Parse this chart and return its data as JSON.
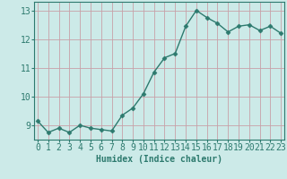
{
  "x": [
    0,
    1,
    2,
    3,
    4,
    5,
    6,
    7,
    8,
    9,
    10,
    11,
    12,
    13,
    14,
    15,
    16,
    17,
    18,
    19,
    20,
    21,
    22,
    23
  ],
  "y": [
    9.15,
    8.75,
    8.9,
    8.75,
    9.0,
    8.9,
    8.85,
    8.8,
    9.35,
    9.6,
    10.1,
    10.85,
    11.35,
    11.5,
    12.45,
    13.0,
    12.75,
    12.55,
    12.25,
    12.45,
    12.5,
    12.3,
    12.45,
    12.2
  ],
  "line_color": "#2d7a6e",
  "marker": "D",
  "marker_size": 2.5,
  "line_width": 1.0,
  "bg_color": "#cceae8",
  "grid_color": "#c8a0a8",
  "xlabel": "Humidex (Indice chaleur)",
  "xlabel_fontsize": 7,
  "tick_fontsize": 7,
  "ylim": [
    8.5,
    13.3
  ],
  "yticks": [
    9,
    10,
    11,
    12,
    13
  ],
  "xticks": [
    0,
    1,
    2,
    3,
    4,
    5,
    6,
    7,
    8,
    9,
    10,
    11,
    12,
    13,
    14,
    15,
    16,
    17,
    18,
    19,
    20,
    21,
    22,
    23
  ],
  "xlim": [
    -0.3,
    23.3
  ]
}
